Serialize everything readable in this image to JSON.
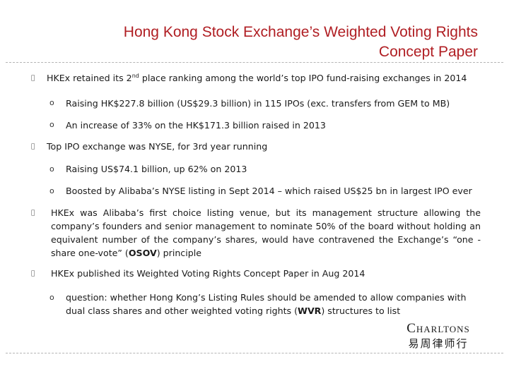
{
  "title": {
    "line1": "Hong Kong Stock Exchange’s Weighted Voting Rights",
    "line2": "Concept Paper"
  },
  "markers": {
    "bullet": "",
    "sub": "o"
  },
  "bullets": [
    {
      "pre": "HKEx retained its 2",
      "sup": "nd",
      "post": " place ranking among the world’s top IPO fund-raising exchanges in 2014",
      "subs": [
        "Raising HK$227.8 billion (US$29.3 billion) in 115 IPOs (exc. transfers from GEM to MB)",
        "An increase of 33% on the HK$171.3 billion raised in 2013"
      ]
    },
    {
      "text": "Top IPO exchange was NYSE, for 3rd year running",
      "subs": [
        "Raising US$74.1 billion, up 62% on 2013",
        "Boosted by Alibaba’s NYSE listing in Sept 2014 – which raised US$25 bn in largest IPO ever"
      ]
    },
    {
      "pre": "HKEx was Alibaba’s first choice listing venue, but its management structure allowing the company’s founders and senior management to nominate 50% of the board without holding an equivalent number of the company’s shares, would have contravened the Exchange’s “one -share one-vote” (",
      "bold": "OSOV",
      "post": ") principle"
    },
    {
      "text": "HKEx published its Weighted Voting Rights Concept Paper in Aug 2014",
      "subs_pre": "question: whether Hong Kong’s Listing Rules should be amended to allow companies with dual class shares and other weighted voting rights (",
      "subs_bold": "WVR",
      "subs_post": ") structures to list"
    }
  ],
  "logo": {
    "en": "Charltons",
    "cn": "易周律师行"
  }
}
